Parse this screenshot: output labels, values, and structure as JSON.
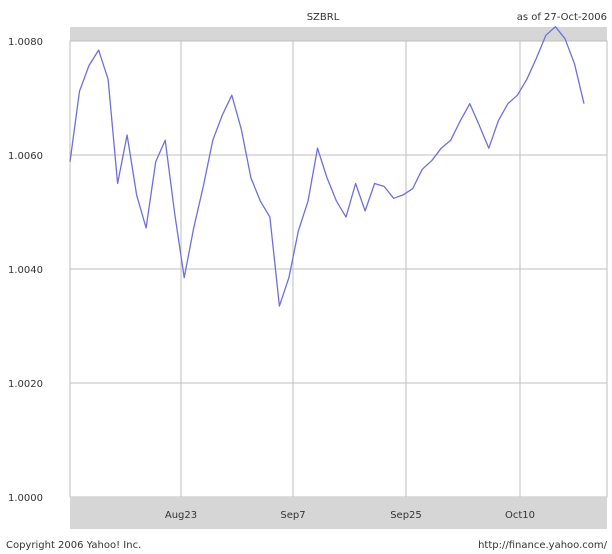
{
  "header": {
    "title": "SZBRL",
    "as_of": "as of 27-Oct-2006"
  },
  "footer": {
    "copyright": "Copyright 2006 Yahoo! Inc.",
    "url": "http://finance.yahoo.com/"
  },
  "colors": {
    "line": "#6f6fdc",
    "grid": "#bfbfbf",
    "band": "#d6d6d6",
    "axis_text": "#333333"
  },
  "chart_data": {
    "type": "line",
    "ylim": [
      1.0,
      1.008
    ],
    "yticks": [
      "1.0000",
      "1.0020",
      "1.0040",
      "1.0060",
      "1.0080"
    ],
    "x_tick_labels": [
      "Aug23",
      "Sep7",
      "Sep25",
      "Oct10"
    ],
    "grid": true,
    "series": [
      {
        "values": [
          1.00588,
          1.00712,
          1.00757,
          1.00784,
          1.00733,
          1.0055,
          1.00635,
          1.0053,
          1.00472,
          1.00588,
          1.00626,
          1.00497,
          1.00385,
          1.00472,
          1.00545,
          1.00626,
          1.0067,
          1.00705,
          1.00645,
          1.0056,
          1.00519,
          1.00491,
          1.00335,
          1.00385,
          1.00467,
          1.00519,
          1.00612,
          1.0056,
          1.00519,
          1.00491,
          1.0055,
          1.00502,
          1.0055,
          1.00545,
          1.00524,
          1.0053,
          1.00541,
          1.00575,
          1.0059,
          1.00612,
          1.00626,
          1.0066,
          1.0069,
          1.00652,
          1.00612,
          1.0066,
          1.0069,
          1.00705,
          1.00733,
          1.0077,
          1.0081,
          1.00825,
          1.00804,
          1.0076,
          1.0069
        ]
      }
    ]
  }
}
